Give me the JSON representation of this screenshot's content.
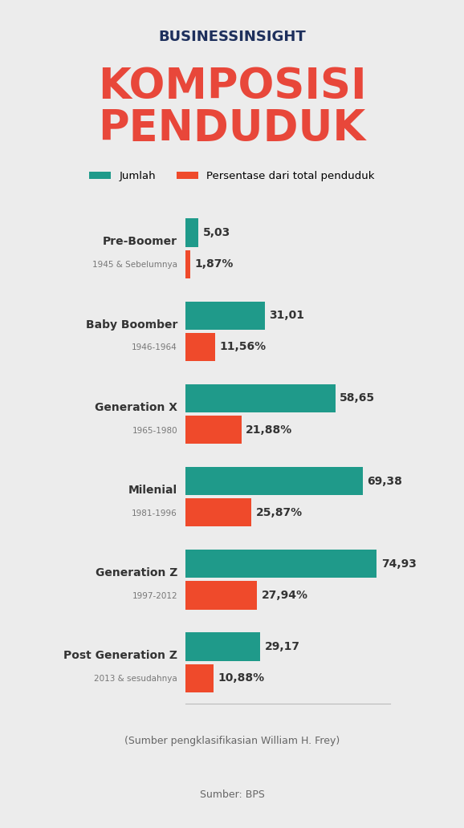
{
  "header": "BUSINESSINSIGHT",
  "chart_data": {
    "type": "bar",
    "orientation": "horizontal",
    "title": "KOMPOSISI PENDUDUK",
    "categories": [
      "Pre-Boomer",
      "Baby Boomber",
      "Generation X",
      "Milenial",
      "Generation Z",
      "Post Generation Z"
    ],
    "category_details": [
      "1945 & Sebelumnya",
      "1946-1964",
      "1965-1980",
      "1981-1996",
      "1997-2012",
      "2013 & sesudahnya"
    ],
    "series": [
      {
        "name": "Jumlah",
        "color": "#1f9a8a",
        "values": [
          5.03,
          31.01,
          58.65,
          69.38,
          74.93,
          29.17
        ],
        "value_labels": [
          "5,03",
          "31,01",
          "58,65",
          "69,38",
          "74,93",
          "29,17"
        ]
      },
      {
        "name": "Persentase dari total penduduk",
        "color": "#ef4a2b",
        "values": [
          1.87,
          11.56,
          21.88,
          25.87,
          27.94,
          10.88
        ],
        "value_labels": [
          "1,87%",
          "11,56%",
          "21,88%",
          "25,87%",
          "27,94%",
          "10,88%"
        ]
      }
    ],
    "xlim": [
      0,
      80
    ],
    "tick_labels": false,
    "data_labels": true,
    "legend": "upper center",
    "grid": false,
    "notes": [
      "(Sumber pengklasifikasian William H. Frey)",
      "Sumber: BPS"
    ]
  }
}
